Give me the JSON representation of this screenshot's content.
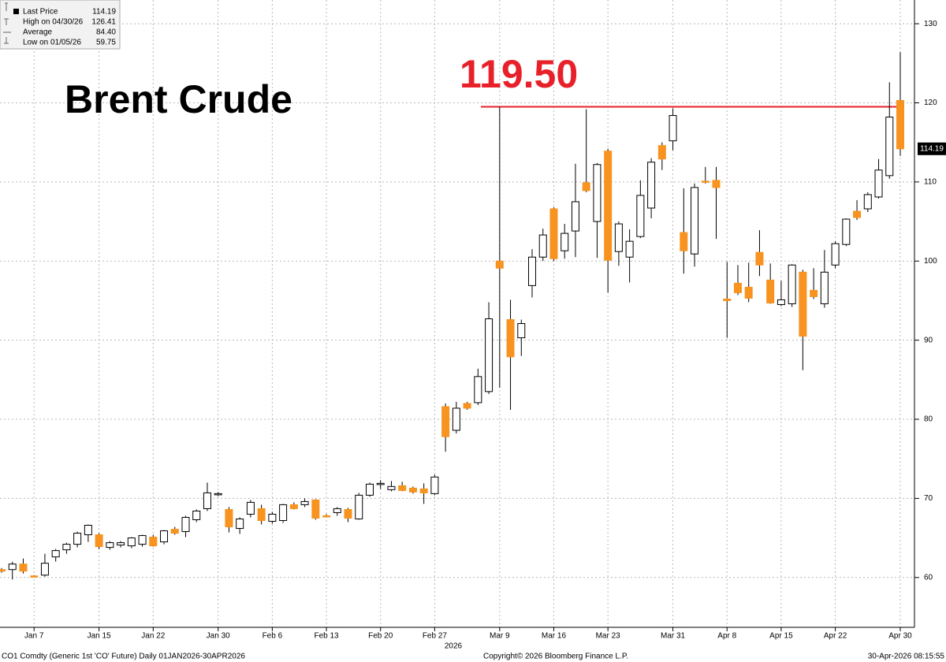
{
  "chart_data": {
    "type": "candlestick",
    "title": "Brent Crude",
    "xlabel": "2026",
    "categories": [
      null,
      null,
      null,
      "Jan 7",
      null,
      null,
      null,
      null,
      null,
      "Jan 15",
      null,
      null,
      null,
      null,
      "Jan 22",
      null,
      null,
      null,
      null,
      null,
      "Jan 30",
      null,
      null,
      null,
      null,
      "Feb 6",
      null,
      null,
      null,
      null,
      "Feb 13",
      null,
      null,
      null,
      null,
      "Feb 20",
      null,
      null,
      null,
      null,
      "Feb 27",
      null,
      null,
      null,
      null,
      null,
      "Mar 9",
      null,
      null,
      null,
      null,
      "Mar 16",
      null,
      null,
      null,
      null,
      "Mar 23",
      null,
      null,
      null,
      null,
      null,
      "Mar 31",
      null,
      null,
      null,
      null,
      "Apr 8",
      null,
      null,
      null,
      null,
      "Apr 15",
      null,
      null,
      null,
      null,
      "Apr 22",
      null,
      null,
      null,
      null,
      null,
      "Apr 30"
    ],
    "open": [
      61.0,
      61.0,
      61.7,
      60.2,
      60.3,
      62.6,
      63.5,
      64.2,
      65.4,
      65.4,
      63.8,
      64.1,
      64.0,
      64.2,
      65.1,
      64.5,
      66.1,
      65.8,
      67.3,
      68.7,
      70.5,
      68.6,
      66.2,
      68.0,
      68.7,
      67.1,
      67.2,
      69.2,
      69.2,
      69.8,
      67.8,
      68.2,
      68.6,
      67.4,
      70.4,
      71.8,
      71.1,
      71.6,
      71.3,
      71.2,
      70.6,
      81.6,
      78.6,
      82.0,
      82.1,
      83.5,
      100.0,
      92.6,
      90.3,
      96.9,
      100.5,
      106.6,
      101.3,
      103.8,
      109.9,
      105.0,
      113.9,
      101.2,
      100.5,
      103.1,
      106.7,
      114.6,
      115.2,
      103.6,
      100.9,
      110.1,
      110.2,
      95.2,
      97.2,
      96.7,
      101.1,
      97.6,
      94.5,
      94.6,
      98.6,
      96.3,
      94.6,
      99.5,
      102.1,
      106.3,
      106.6,
      108.1,
      110.8,
      120.3
    ],
    "high": [
      61.2,
      62.0,
      62.4,
      60.3,
      63.0,
      63.6,
      64.4,
      65.8,
      66.7,
      65.6,
      64.6,
      64.6,
      65.1,
      65.4,
      65.4,
      66.0,
      66.4,
      67.8,
      68.6,
      72.0,
      70.8,
      68.9,
      67.6,
      69.8,
      69.2,
      68.3,
      69.3,
      69.5,
      70.0,
      69.9,
      68.0,
      68.9,
      68.8,
      70.7,
      72.0,
      72.3,
      72.2,
      72.1,
      71.5,
      71.9,
      73.0,
      82.0,
      82.2,
      82.2,
      86.4,
      94.8,
      119.5,
      95.1,
      92.6,
      101.5,
      104.1,
      106.8,
      104.7,
      112.3,
      119.2,
      112.4,
      114.2,
      105.0,
      104.0,
      110.2,
      113.0,
      115.0,
      119.3,
      109.2,
      109.8,
      111.9,
      111.9,
      99.9,
      99.5,
      99.8,
      103.9,
      99.7,
      97.5,
      99.6,
      98.9,
      99.1,
      101.4,
      102.5,
      105.4,
      107.7,
      108.7,
      112.9,
      122.6,
      126.41
    ],
    "low": [
      60.6,
      59.75,
      60.5,
      60.0,
      60.1,
      62.0,
      63.0,
      63.8,
      64.5,
      63.6,
      63.5,
      63.8,
      63.7,
      63.9,
      63.9,
      64.2,
      65.4,
      65.1,
      67.0,
      68.4,
      70.3,
      65.7,
      65.5,
      67.6,
      66.7,
      66.8,
      66.9,
      68.6,
      68.9,
      67.3,
      67.6,
      67.8,
      67.0,
      67.3,
      70.2,
      71.2,
      70.9,
      70.9,
      70.6,
      69.3,
      70.4,
      75.9,
      78.2,
      81.2,
      81.8,
      83.2,
      84.0,
      81.2,
      88.0,
      95.4,
      100.0,
      100.0,
      100.3,
      100.5,
      108.7,
      100.4,
      96.0,
      99.4,
      97.3,
      102.9,
      105.4,
      111.5,
      114.0,
      98.4,
      99.3,
      109.8,
      102.8,
      90.3,
      95.7,
      94.8,
      98.1,
      94.6,
      94.3,
      94.2,
      86.2,
      95.2,
      94.1,
      99.1,
      101.9,
      105.2,
      106.2,
      107.9,
      110.4,
      113.3
    ],
    "close": [
      60.8,
      61.7,
      60.8,
      60.1,
      61.8,
      63.4,
      64.2,
      65.6,
      66.6,
      63.9,
      64.4,
      64.4,
      65.0,
      65.3,
      64.0,
      65.9,
      65.6,
      67.6,
      68.4,
      70.7,
      70.6,
      66.4,
      67.4,
      69.5,
      67.2,
      68.0,
      69.2,
      68.7,
      69.6,
      67.5,
      67.7,
      68.7,
      67.5,
      70.4,
      71.8,
      71.9,
      71.5,
      71.0,
      70.8,
      70.7,
      72.7,
      77.8,
      81.4,
      81.4,
      85.4,
      92.7,
      99.1,
      87.9,
      92.1,
      100.5,
      103.3,
      100.3,
      103.5,
      107.5,
      108.9,
      112.2,
      100.1,
      104.7,
      102.5,
      108.3,
      112.5,
      112.9,
      118.4,
      101.3,
      109.3,
      110.0,
      109.3,
      95.0,
      96.0,
      95.3,
      99.5,
      94.7,
      95.1,
      99.5,
      90.5,
      95.5,
      98.6,
      102.2,
      105.3,
      105.5,
      108.4,
      111.5,
      118.2,
      114.19
    ],
    "up_color": "#ffffff",
    "down_color": "#f7931e",
    "ylim": [
      53.7,
      133
    ],
    "yticks": [
      60,
      70,
      80,
      90,
      100,
      110,
      120,
      130
    ],
    "grid": true,
    "annotation": {
      "value": 119.5,
      "label": "119.50",
      "color": "#e8202a"
    },
    "legend": [
      {
        "label": "Last Price",
        "value": "114.19"
      },
      {
        "label": "High on 04/30/26",
        "value": "126.41"
      },
      {
        "label": "Average",
        "value": "84.40"
      },
      {
        "label": "Low on 01/05/26",
        "value": "59.75"
      }
    ],
    "footer": {
      "left": "CO1 Comdty (Generic 1st 'CO' Future) Daily 01JAN2026-30APR2026",
      "center": "Copyright© 2026 Bloomberg Finance L.P.",
      "right": "30-Apr-2026 08:15:55"
    }
  }
}
